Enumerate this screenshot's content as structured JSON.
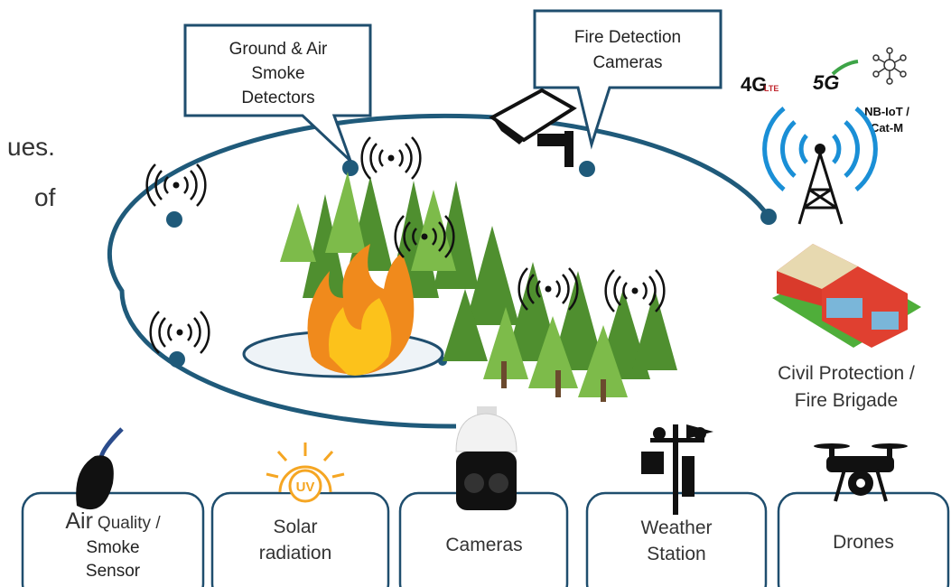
{
  "partial_text": [
    "ues.",
    "of"
  ],
  "callouts": [
    {
      "lines": [
        "Ground & Air",
        "Smoke",
        "Detectors"
      ]
    },
    {
      "lines": [
        "Fire Detection",
        "Cameras"
      ]
    }
  ],
  "network": {
    "badges": [
      "4G",
      "LTE",
      "5G"
    ],
    "lines": [
      "NB-IoT /",
      "Cat-M"
    ]
  },
  "responder": {
    "lines": [
      "Civil Protection /",
      "Fire Brigade"
    ]
  },
  "uv_icon": "UV",
  "sensors": [
    {
      "lead": "Air",
      "lines": [
        "Quality /",
        "Smoke",
        "Sensor"
      ]
    },
    {
      "lines": [
        "Solar",
        "radiation"
      ]
    },
    {
      "lines": [
        "Cameras"
      ]
    },
    {
      "lines": [
        "Weather",
        "Station"
      ]
    },
    {
      "lines": [
        "Drones"
      ]
    }
  ]
}
